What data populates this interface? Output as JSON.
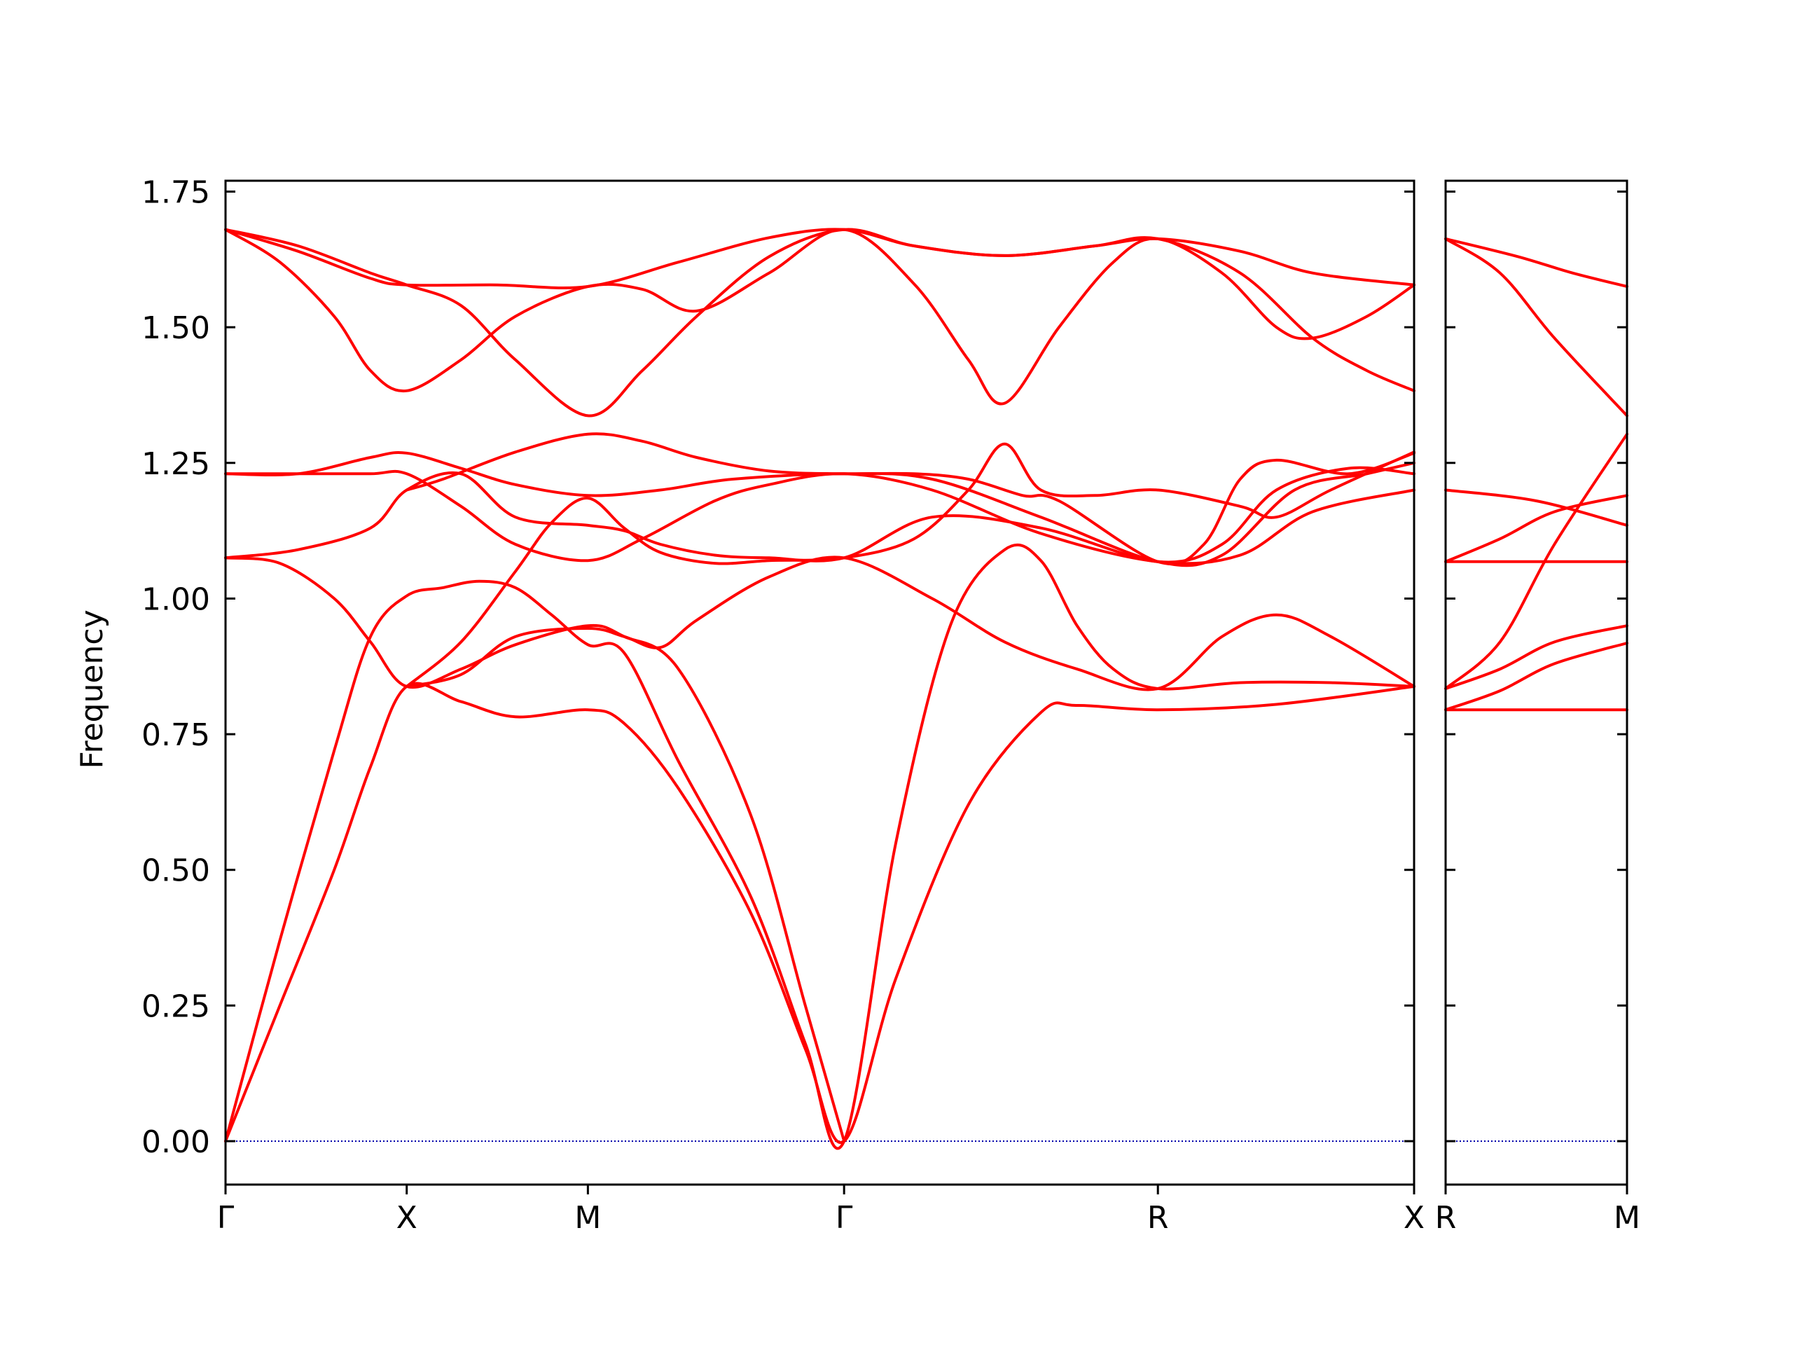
{
  "chart_data": {
    "type": "line",
    "ylabel": "Frequency",
    "ylim": [
      -0.08,
      1.77
    ],
    "yticks": [
      "0.00",
      "0.25",
      "0.50",
      "0.75",
      "1.00",
      "1.25",
      "1.50",
      "1.75"
    ],
    "line_color": "#ff0000",
    "zero_line_color": "#0000aa",
    "grid": false,
    "panels": [
      {
        "name": "main",
        "xticks": [
          {
            "label": "Γ",
            "pos": 0
          },
          {
            "label": "X",
            "pos": 1
          },
          {
            "label": "M",
            "pos": 2
          },
          {
            "label": "Γ",
            "pos": 3.414
          },
          {
            "label": "R",
            "pos": 5.146
          },
          {
            "label": "X",
            "pos": 6.56
          }
        ],
        "bands": [
          [
            [
              0,
              0
            ],
            [
              0.3,
              0.25
            ],
            [
              0.6,
              0.5
            ],
            [
              0.8,
              0.69
            ],
            [
              1,
              0.838
            ],
            [
              1.3,
              0.81
            ],
            [
              1.6,
              0.782
            ],
            [
              2,
              0.795
            ],
            [
              2.2,
              0.77
            ],
            [
              2.5,
              0.65
            ],
            [
              2.9,
              0.42
            ],
            [
              3.2,
              0.17
            ],
            [
              3.414,
              0
            ],
            [
              3.7,
              0.3
            ],
            [
              4.1,
              0.62
            ],
            [
              4.5,
              0.79
            ],
            [
              4.7,
              0.803
            ],
            [
              5.146,
              0.795
            ],
            [
              5.8,
              0.805
            ],
            [
              6.56,
              0.838
            ]
          ],
          [
            [
              0,
              0
            ],
            [
              0.3,
              0.37
            ],
            [
              0.6,
              0.72
            ],
            [
              0.8,
              0.93
            ],
            [
              1,
              1.005
            ],
            [
              1.2,
              1.02
            ],
            [
              1.4,
              1.032
            ],
            [
              1.6,
              1.02
            ],
            [
              1.8,
              0.97
            ],
            [
              2,
              0.915
            ],
            [
              2.2,
              0.9
            ],
            [
              2.5,
              0.7
            ],
            [
              2.9,
              0.45
            ],
            [
              3.2,
              0.18
            ],
            [
              3.414,
              0
            ],
            [
              3.7,
              0.55
            ],
            [
              4,
              0.95
            ],
            [
              4.3,
              1.09
            ],
            [
              4.5,
              1.07
            ],
            [
              4.7,
              0.95
            ],
            [
              4.9,
              0.87
            ],
            [
              5.146,
              0.834
            ],
            [
              5.6,
              0.845
            ],
            [
              6.1,
              0.845
            ],
            [
              6.56,
              0.838
            ]
          ],
          [
            [
              0,
              1.075
            ],
            [
              0.3,
              1.065
            ],
            [
              0.6,
              1.0
            ],
            [
              0.8,
              0.92
            ],
            [
              1,
              0.838
            ],
            [
              1.3,
              0.87
            ],
            [
              1.6,
              0.915
            ],
            [
              2,
              0.95
            ],
            [
              2.2,
              0.93
            ],
            [
              2.5,
              0.87
            ],
            [
              2.9,
              0.6
            ],
            [
              3.2,
              0.25
            ],
            [
              3.414,
              0
            ]
          ],
          [
            [
              1,
              0.838
            ],
            [
              1.3,
              0.86
            ],
            [
              1.6,
              0.93
            ],
            [
              2,
              0.945
            ],
            [
              2.2,
              0.93
            ],
            [
              2.4,
              0.91
            ],
            [
              2.6,
              0.96
            ],
            [
              3.0,
              1.04
            ],
            [
              3.414,
              1.075
            ],
            [
              3.9,
              1.0
            ],
            [
              4.3,
              0.92
            ],
            [
              4.7,
              0.87
            ],
            [
              5.146,
              0.834
            ],
            [
              5.5,
              0.93
            ],
            [
              5.8,
              0.97
            ],
            [
              6.1,
              0.93
            ],
            [
              6.56,
              0.838
            ]
          ],
          [
            [
              1,
              0.838
            ],
            [
              1.3,
              0.92
            ],
            [
              1.6,
              1.05
            ],
            [
              1.8,
              1.14
            ],
            [
              2,
              1.185
            ],
            [
              2.2,
              1.13
            ],
            [
              2.4,
              1.085
            ],
            [
              2.7,
              1.065
            ],
            [
              3.0,
              1.07
            ],
            [
              3.414,
              1.075
            ],
            [
              3.8,
              1.11
            ],
            [
              4.1,
              1.2
            ],
            [
              4.3,
              1.285
            ],
            [
              4.5,
              1.2
            ],
            [
              4.8,
              1.19
            ],
            [
              5.146,
              1.2
            ],
            [
              5.6,
              1.17
            ],
            [
              5.8,
              1.15
            ],
            [
              6.1,
              1.2
            ],
            [
              6.56,
              1.27
            ]
          ],
          [
            [
              0,
              1.075
            ],
            [
              0.4,
              1.09
            ],
            [
              0.8,
              1.13
            ],
            [
              1,
              1.2
            ],
            [
              1.3,
              1.23
            ],
            [
              1.6,
              1.15
            ],
            [
              2,
              1.135
            ],
            [
              2.2,
              1.125
            ],
            [
              2.4,
              1.1
            ],
            [
              2.7,
              1.08
            ],
            [
              3.0,
              1.075
            ],
            [
              3.414,
              1.075
            ],
            [
              3.9,
              1.15
            ],
            [
              4.5,
              1.13
            ],
            [
              5.146,
              1.068
            ],
            [
              5.5,
              1.1
            ],
            [
              5.8,
              1.2
            ],
            [
              6.2,
              1.24
            ],
            [
              6.56,
              1.23
            ]
          ],
          [
            [
              0,
              1.23
            ],
            [
              0.4,
              1.23
            ],
            [
              0.8,
              1.23
            ],
            [
              1,
              1.23
            ],
            [
              1.3,
              1.17
            ],
            [
              1.6,
              1.1
            ],
            [
              2,
              1.07
            ],
            [
              2.3,
              1.11
            ],
            [
              2.7,
              1.18
            ],
            [
              3.0,
              1.21
            ],
            [
              3.414,
              1.23
            ],
            [
              3.9,
              1.2
            ],
            [
              4.5,
              1.12
            ],
            [
              5.146,
              1.068
            ],
            [
              5.6,
              1.08
            ],
            [
              6.0,
              1.16
            ],
            [
              6.56,
              1.2
            ]
          ],
          [
            [
              0,
              1.23
            ],
            [
              0.4,
              1.23
            ],
            [
              0.8,
              1.26
            ],
            [
              1,
              1.268
            ],
            [
              1.3,
              1.24
            ],
            [
              1.6,
              1.21
            ],
            [
              2,
              1.19
            ],
            [
              2.4,
              1.2
            ],
            [
              2.8,
              1.22
            ],
            [
              3.414,
              1.23
            ],
            [
              3.9,
              1.22
            ],
            [
              4.5,
              1.15
            ],
            [
              5.146,
              1.068
            ],
            [
              5.5,
              1.08
            ],
            [
              5.9,
              1.2
            ],
            [
              6.3,
              1.23
            ],
            [
              6.56,
              1.25
            ]
          ],
          [
            [
              1,
              1.2
            ],
            [
              1.2,
              1.22
            ],
            [
              1.6,
              1.27
            ],
            [
              2,
              1.303
            ],
            [
              2.3,
              1.29
            ],
            [
              2.6,
              1.26
            ],
            [
              3.0,
              1.235
            ],
            [
              3.414,
              1.23
            ],
            [
              3.8,
              1.23
            ],
            [
              4.1,
              1.22
            ],
            [
              4.4,
              1.19
            ],
            [
              4.6,
              1.18
            ],
            [
              5.146,
              1.068
            ],
            [
              5.4,
              1.1
            ],
            [
              5.6,
              1.22
            ],
            [
              5.8,
              1.255
            ],
            [
              6.2,
              1.23
            ],
            [
              6.56,
              1.268
            ]
          ],
          [
            [
              0,
              1.68
            ],
            [
              0.3,
              1.62
            ],
            [
              0.6,
              1.52
            ],
            [
              0.8,
              1.42
            ],
            [
              1,
              1.383
            ],
            [
              1.3,
              1.44
            ],
            [
              1.6,
              1.52
            ],
            [
              2,
              1.575
            ],
            [
              2.3,
              1.57
            ],
            [
              2.6,
              1.53
            ],
            [
              3.0,
              1.6
            ],
            [
              3.414,
              1.68
            ],
            [
              3.8,
              1.58
            ],
            [
              4.1,
              1.44
            ],
            [
              4.3,
              1.36
            ],
            [
              4.6,
              1.5
            ],
            [
              4.9,
              1.62
            ],
            [
              5.146,
              1.663
            ],
            [
              5.5,
              1.6
            ],
            [
              5.8,
              1.5
            ],
            [
              6.0,
              1.48
            ],
            [
              6.3,
              1.52
            ],
            [
              6.56,
              1.578
            ]
          ],
          [
            [
              0,
              1.68
            ],
            [
              0.4,
              1.65
            ],
            [
              0.8,
              1.6
            ],
            [
              1,
              1.578
            ],
            [
              1.3,
              1.54
            ],
            [
              1.6,
              1.44
            ],
            [
              2,
              1.337
            ],
            [
              2.3,
              1.42
            ],
            [
              2.6,
              1.52
            ],
            [
              3.0,
              1.63
            ],
            [
              3.414,
              1.68
            ],
            [
              3.8,
              1.65
            ],
            [
              4.3,
              1.632
            ],
            [
              4.8,
              1.65
            ],
            [
              5.146,
              1.663
            ],
            [
              5.6,
              1.6
            ],
            [
              6.0,
              1.48
            ],
            [
              6.3,
              1.42
            ],
            [
              6.56,
              1.383
            ]
          ],
          [
            [
              0,
              1.68
            ],
            [
              0.4,
              1.64
            ],
            [
              0.8,
              1.59
            ],
            [
              1,
              1.578
            ],
            [
              1.5,
              1.578
            ],
            [
              2,
              1.575
            ],
            [
              2.5,
              1.62
            ],
            [
              3.0,
              1.665
            ],
            [
              3.414,
              1.68
            ],
            [
              3.8,
              1.65
            ],
            [
              4.3,
              1.632
            ],
            [
              4.8,
              1.65
            ],
            [
              5.146,
              1.663
            ],
            [
              5.6,
              1.64
            ],
            [
              6.0,
              1.6
            ],
            [
              6.56,
              1.578
            ]
          ]
        ]
      },
      {
        "name": "side",
        "xticks": [
          {
            "label": "R",
            "pos": 0
          },
          {
            "label": "M",
            "pos": 1
          }
        ],
        "bands": [
          [
            [
              0,
              0.795
            ],
            [
              1,
              0.795
            ]
          ],
          [
            [
              0,
              0.795
            ],
            [
              0.3,
              0.83
            ],
            [
              0.6,
              0.88
            ],
            [
              1,
              0.918
            ]
          ],
          [
            [
              0,
              0.834
            ],
            [
              0.3,
              0.87
            ],
            [
              0.6,
              0.92
            ],
            [
              1,
              0.95
            ]
          ],
          [
            [
              0,
              0.834
            ],
            [
              0.3,
              0.92
            ],
            [
              0.6,
              1.1
            ],
            [
              1,
              1.303
            ]
          ],
          [
            [
              0,
              1.068
            ],
            [
              1,
              1.068
            ]
          ],
          [
            [
              0,
              1.068
            ],
            [
              0.3,
              1.11
            ],
            [
              0.6,
              1.16
            ],
            [
              1,
              1.19
            ]
          ],
          [
            [
              0,
              1.2
            ],
            [
              0.5,
              1.18
            ],
            [
              1,
              1.135
            ]
          ],
          [
            [
              0,
              1.663
            ],
            [
              0.3,
              1.6
            ],
            [
              0.6,
              1.48
            ],
            [
              1,
              1.337
            ]
          ],
          [
            [
              0,
              1.663
            ],
            [
              0.4,
              1.63
            ],
            [
              0.7,
              1.6
            ],
            [
              1,
              1.575
            ]
          ]
        ]
      }
    ]
  }
}
